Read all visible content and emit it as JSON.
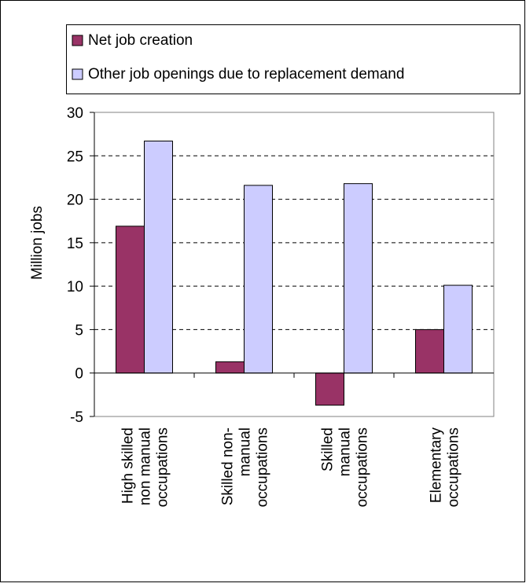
{
  "chart_data": {
    "type": "bar",
    "ylabel": "Million jobs",
    "ylim": [
      -5,
      30
    ],
    "yticks": [
      -5,
      0,
      5,
      10,
      15,
      20,
      25,
      30
    ],
    "grid": "horizontal dashed",
    "legend_position": "top",
    "categories": [
      [
        "High skilled",
        "non manual",
        "occupations"
      ],
      [
        "Skilled non-",
        "manual",
        "occupations"
      ],
      [
        "Skilled",
        "manual",
        "occupations"
      ],
      [
        "Elementary",
        "occupations"
      ]
    ],
    "series": [
      {
        "name": "Net job creation",
        "color": "#993366",
        "values": [
          16.9,
          1.3,
          -3.7,
          5.0
        ]
      },
      {
        "name": "Other job openings due to replacement demand",
        "color": "#CCCCFF",
        "values": [
          26.7,
          21.6,
          21.8,
          10.1
        ]
      }
    ]
  }
}
